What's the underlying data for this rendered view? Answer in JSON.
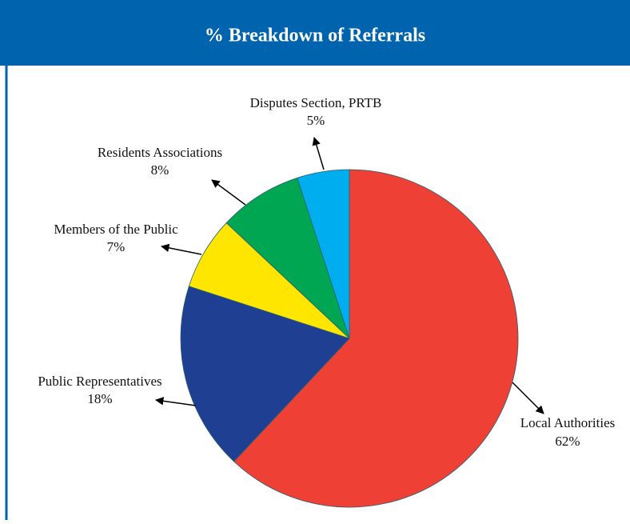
{
  "chart_data": {
    "type": "pie",
    "title": "% Breakdown of Referrals",
    "categories": [
      "Local Authorities",
      "Public Representatives",
      "Members of the Public",
      "Residents Associations",
      "Disputes Section,  PRTB"
    ],
    "values": [
      62,
      18,
      7,
      8,
      5
    ],
    "value_labels": [
      "62%",
      "18%",
      "7%",
      "8%",
      "5%"
    ],
    "colors": [
      "#ee4035",
      "#1f3f93",
      "#ffe600",
      "#00a651",
      "#00aeef"
    ]
  }
}
